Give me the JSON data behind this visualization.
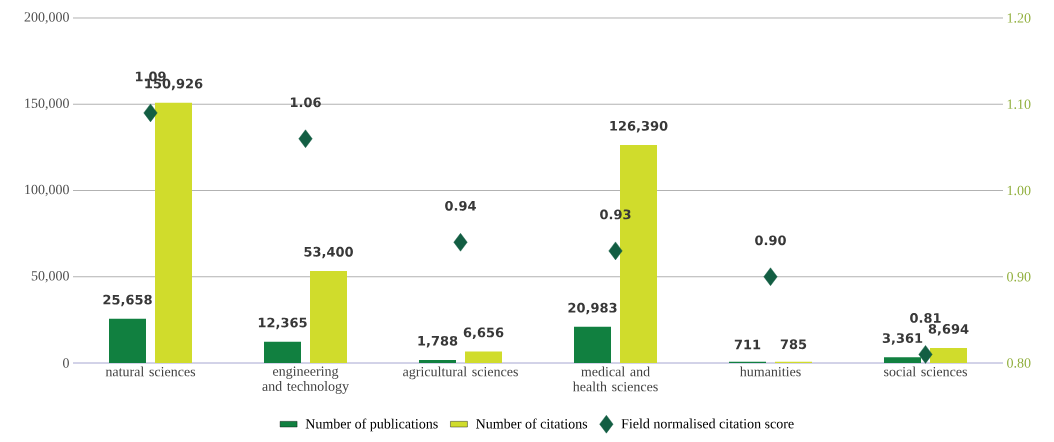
{
  "chart_data": {
    "type": "bar",
    "categories": [
      "natural sciences",
      "engineering and technology",
      "agricultural sciences",
      "medical and health sciences",
      "humanities",
      "social sciences"
    ],
    "series": [
      {
        "name": "Number of publications",
        "color": "#118040",
        "values": [
          25658,
          12365,
          1788,
          20983,
          711,
          3361
        ],
        "value_labels": [
          "25,658",
          "12,365",
          "1,788",
          "20,983",
          "711",
          "3,361"
        ]
      },
      {
        "name": "Number of citations",
        "color": "#d0dc2c",
        "values": [
          150926,
          53400,
          6656,
          126390,
          785,
          8694
        ],
        "value_labels": [
          "150,926",
          "53,400",
          "6,656",
          "126,390",
          "785",
          "8,694"
        ]
      },
      {
        "name": "Field normalised citation score",
        "type": "scatter",
        "axis": "y2",
        "marker": "diamond",
        "color": "#135e43",
        "values": [
          1.09,
          1.06,
          0.94,
          0.93,
          0.9,
          0.81
        ],
        "value_labels": [
          "1.09",
          "1.06",
          "0.94",
          "0.93",
          "0.90",
          "0.81"
        ]
      }
    ],
    "ylim": [
      0,
      200000
    ],
    "yticks": [
      {
        "value": 0,
        "label": "0"
      },
      {
        "value": 50000,
        "label": "50,000"
      },
      {
        "value": 100000,
        "label": "100,000"
      },
      {
        "value": 150000,
        "label": "150,000"
      },
      {
        "value": 200000,
        "label": "200,000"
      }
    ],
    "y2lim": [
      0.8,
      1.2
    ],
    "y2ticks": [
      {
        "value": 0.8,
        "label": "0.80"
      },
      {
        "value": 0.9,
        "label": "0.90"
      },
      {
        "value": 1.0,
        "label": "1.00"
      },
      {
        "value": 1.1,
        "label": "1.10"
      },
      {
        "value": 1.2,
        "label": "1.20"
      }
    ],
    "grid": "y",
    "legend": "bottom"
  }
}
